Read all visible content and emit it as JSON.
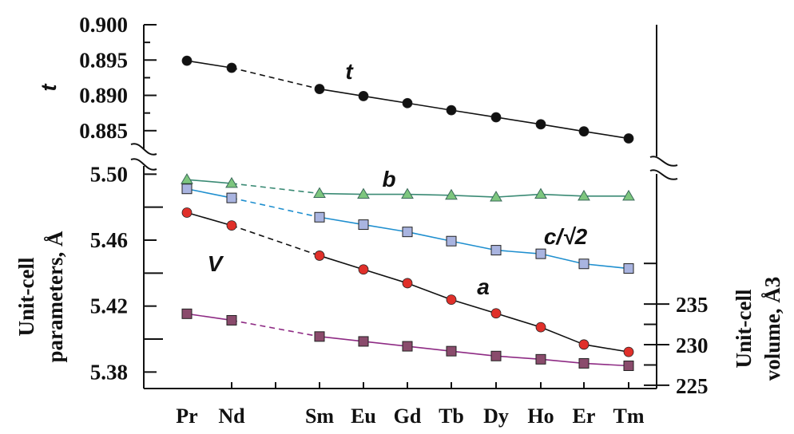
{
  "chart_data": {
    "type": "line",
    "categories": [
      "Pr",
      "Nd",
      "Sm",
      "Eu",
      "Gd",
      "Tb",
      "Dy",
      "Ho",
      "Er",
      "Tm"
    ],
    "top_panel": {
      "ylabel": "t",
      "ylim": [
        0.883,
        0.9
      ],
      "ticks": [
        "0.900",
        "0.895",
        "0.890",
        "0.885"
      ],
      "tick_values": [
        0.9,
        0.895,
        0.89,
        0.885
      ]
    },
    "left_axis": {
      "ylabel_lines": [
        "Unit-cell",
        "parameters, Å"
      ],
      "ylim": [
        5.37,
        5.505
      ],
      "ticks": [
        "5.50",
        "5.46",
        "5.42",
        "5.38"
      ],
      "tick_values": [
        5.5,
        5.46,
        5.42,
        5.38
      ],
      "minor_tick_values": [
        5.48,
        5.44,
        5.4
      ]
    },
    "right_axis": {
      "ylabel_lines": [
        "Unit-cell",
        "volume, Å3"
      ],
      "ylim": [
        224.6,
        252.0
      ],
      "ticks": [
        "235",
        "230",
        "225"
      ],
      "tick_values": [
        235,
        230,
        225
      ],
      "minor_tick_values": [
        240,
        232.5,
        227.5
      ]
    },
    "series": [
      {
        "name": "t",
        "axis": "top",
        "color": "#111111",
        "marker": "circle",
        "values": [
          0.8949,
          0.8939,
          0.8909,
          0.8899,
          0.8889,
          0.8879,
          0.8869,
          0.8859,
          0.8849,
          0.8839
        ]
      },
      {
        "name": "b",
        "axis": "left",
        "color": "#3a8a74",
        "marker_fill": "#7dc67e",
        "marker": "triangle",
        "values": [
          5.4967,
          5.4944,
          5.4883,
          5.4878,
          5.4878,
          5.4872,
          5.4861,
          5.4878,
          5.4867,
          5.4867
        ]
      },
      {
        "name": "c/√2",
        "axis": "left",
        "color": "#1f8fcf",
        "marker_fill": "#a9b4e0",
        "marker": "square",
        "values": [
          5.4911,
          5.4856,
          5.4739,
          5.4694,
          5.465,
          5.4594,
          5.4539,
          5.4517,
          5.4456,
          5.4428
        ]
      },
      {
        "name": "a",
        "axis": "left",
        "color": "#111111",
        "marker_fill": "#e0302a",
        "marker": "circle",
        "values": [
          5.4767,
          5.4689,
          5.4506,
          5.4422,
          5.4339,
          5.4239,
          5.4156,
          5.4072,
          5.3967,
          5.3922
        ]
      },
      {
        "name": "V",
        "axis": "right",
        "color": "#8e2b84",
        "marker_fill": "#8a4b6c",
        "marker": "square",
        "values": [
          233.8,
          233.0,
          231.0,
          230.4,
          229.8,
          229.2,
          228.6,
          228.2,
          227.7,
          227.4
        ]
      }
    ],
    "dashed_segment": [
      "Nd",
      "Sm"
    ],
    "grid": false,
    "legend": "none (inline labels)"
  }
}
